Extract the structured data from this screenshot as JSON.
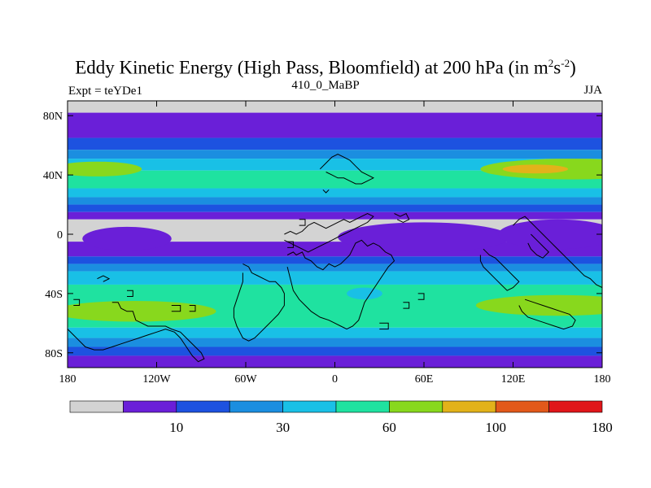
{
  "chart_data": {
    "type": "heatmap",
    "title": "Eddy Kinetic Energy (High Pass, Bloomfield) at 200 hPa (in m",
    "title_units_sup1": "2",
    "title_units_mid": "s",
    "title_units_sup2": "-2",
    "title_units_end": ")",
    "subtitle_left": "Expt = teYDe1",
    "subtitle_center": "410_0_MaBP",
    "subtitle_right": "JJA",
    "x_ticks": [
      "180",
      "120W",
      "60W",
      "0",
      "60E",
      "120E",
      "180"
    ],
    "x_tick_values": [
      -180,
      -120,
      -60,
      0,
      60,
      120,
      180
    ],
    "y_ticks": [
      "80N",
      "40N",
      "0",
      "40S",
      "80S"
    ],
    "y_tick_values": [
      80,
      40,
      0,
      -40,
      -80
    ],
    "xlim": [
      -180,
      180
    ],
    "ylim": [
      -90,
      90
    ],
    "colorbar": {
      "colors": [
        "#d3d3d3",
        "#6a1fd8",
        "#1d52e0",
        "#1b8ee0",
        "#19c0e6",
        "#1fe2a0",
        "#88d81d",
        "#e2b21a",
        "#e2591a",
        "#e0161a"
      ],
      "labels": [
        "10",
        "30",
        "60",
        "100",
        "180"
      ]
    },
    "bands": [
      {
        "lat_top": 90,
        "lat_bottom": 82,
        "level": 0
      },
      {
        "lat_top": 82,
        "lat_bottom": 65,
        "level": 1
      },
      {
        "lat_top": 65,
        "lat_bottom": 57,
        "level": 2
      },
      {
        "lat_top": 57,
        "lat_bottom": 51,
        "level": 3
      },
      {
        "lat_top": 51,
        "lat_bottom": 43,
        "level": 4
      },
      {
        "lat_top": 43,
        "lat_bottom": 31,
        "level": 5
      },
      {
        "lat_top": 31,
        "lat_bottom": 25,
        "level": 4
      },
      {
        "lat_top": 25,
        "lat_bottom": 20,
        "level": 3
      },
      {
        "lat_top": 20,
        "lat_bottom": 15,
        "level": 2
      },
      {
        "lat_top": 15,
        "lat_bottom": 10,
        "level": 1
      },
      {
        "lat_top": 10,
        "lat_bottom": -5,
        "level": 0
      },
      {
        "lat_top": -5,
        "lat_bottom": -15,
        "level": 1
      },
      {
        "lat_top": -15,
        "lat_bottom": -20,
        "level": 2
      },
      {
        "lat_top": -20,
        "lat_bottom": -25,
        "level": 3
      },
      {
        "lat_top": -25,
        "lat_bottom": -34,
        "level": 4
      },
      {
        "lat_top": -34,
        "lat_bottom": -63,
        "level": 5
      },
      {
        "lat_top": -63,
        "lat_bottom": -70,
        "level": 4
      },
      {
        "lat_top": -70,
        "lat_bottom": -76,
        "level": 3
      },
      {
        "lat_top": -76,
        "lat_bottom": -82,
        "level": 2
      },
      {
        "lat_top": -82,
        "lat_bottom": -90,
        "level": 1
      }
    ],
    "blobs": [
      {
        "lon": 160,
        "lat": 44,
        "rx": 62,
        "ry": 7,
        "level": 6
      },
      {
        "lon": 135,
        "lat": 44,
        "rx": 22,
        "ry": 3,
        "level": 7
      },
      {
        "lon": -160,
        "lat": 44,
        "rx": 30,
        "ry": 5,
        "level": 6
      },
      {
        "lon": -135,
        "lat": -52,
        "rx": 55,
        "ry": 7,
        "level": 6
      },
      {
        "lon": 150,
        "lat": -48,
        "rx": 55,
        "ry": 7,
        "level": 6
      },
      {
        "lon": 20,
        "lat": -40,
        "rx": 12,
        "ry": 4,
        "level": 4
      },
      {
        "lon": 60,
        "lat": -2,
        "rx": 58,
        "ry": 10,
        "level": 1
      },
      {
        "lon": 150,
        "lat": 0,
        "rx": 40,
        "ry": 10,
        "level": 1
      },
      {
        "lon": -140,
        "lat": -3,
        "rx": 30,
        "ry": 8,
        "level": 1
      }
    ],
    "continents": [
      "-32,-14 -28,-12 -26,-14 -22,-12 -20,-16 -16,-18 -12,-22 -8,-24 -4,-20 0,-22 4,-20 8,-16 10,-14 12,-10 14,-6 18,-4 22,-8 26,-6 30,-8 34,-12 38,-14 40,-18 36,-22 32,-28 28,-34 24,-40 20,-46 18,-52 16,-58 12,-62 8,-64 4,-62 0,-60 -4,-58 -10,-56 -16,-52 -20,-48 -24,-44 -28,-38 -30,-30 -32,-22",
      "-34,0 -30,2 -26,0 -22,2 -18,6 -14,8 -10,6 -6,4 -2,6 2,8 6,10 10,8 14,10 18,12 22,14 26,12 22,8 18,6 14,4 10,2 6,0 2,-2 -2,-4 -6,-6 -10,-8 -14,-10 -18,-12 -22,-10 -26,-8 -30,-6 -34,-4",
      "-150,-46 -146,-46 -144,-50 -140,-52 -136,-52 -134,-58 -130,-60 -126,-62 -120,-62 -114,-62 -110,-64 -104,-66 -100,-70 -94,-76 -90,-80 -88,-84 -92,-86 -96,-82 -100,-76 -104,-70 -108,-66 -114,-64 -120,-66 -126,-68 -132,-70 -138,-72 -144,-74 -150,-76 -156,-78 -162,-78 -168,-76 -172,-72 -176,-68 -180,-64",
      "-62,-20 -58,-22 -56,-26 -52,-28 -48,-30 -44,-32 -40,-32 -36,-36 -34,-40 -34,-48 -38,-54 -42,-58 -46,-62 -50,-66 -54,-70 -58,-72 -62,-70 -64,-66 -66,-62 -68,-56 -68,-50 -66,-44 -64,-38 -62,-32 -62,-26",
      "-10,44 -6,48 -2,52 2,54 6,52 10,50 14,46 18,42 22,40 26,38 22,36 18,34 14,34 10,36 6,38 2,38 -2,40 -6,42",
      "-8,30 -6,28 -4,30",
      "40,14 44,12 48,14 50,10 46,8 42,10",
      "120,6 124,10 128,12 132,8 136,4 140,0 144,-4 148,-8 152,-12 156,-16 160,-20 164,-24 168,-28 172,-30 176,-34 180,-36",
      "100,-10 104,-14 108,-16 112,-20 116,-24 120,-28 124,-32 120,-36 116,-38 112,-34 108,-30 104,-26 100,-22 98,-18 98,-14",
      "128,-44 134,-46 140,-48 146,-50 152,-52 158,-54 162,-58 160,-62 154,-64 148,-62 142,-60 136,-58 130,-56 126,-52 124,-48",
      "132,0 136,-4 140,-8 144,-12 140,-16 136,-14 132,-10 130,-6",
      "-160,-30 -156,-28 -152,-30 -156,-32",
      "-140,-38 -136,-38 -136,-42 -140,-42",
      "-110,-48 -104,-48 -104,-52 -110,-52",
      "-98,-48 -94,-48 -94,-52 -98,-52",
      "-24,10 -20,10 -20,6 -24,6",
      "-32,-5 -28,-5 -28,-9 -32,-9",
      "30,-60 36,-60 36,-64 30,-64",
      "46,-46 50,-46 50,-50 46,-50",
      "56,-40 60,-40 60,-44 56,-44",
      "-176,-44 -172,-44 -172,-48 -176,-48"
    ]
  }
}
